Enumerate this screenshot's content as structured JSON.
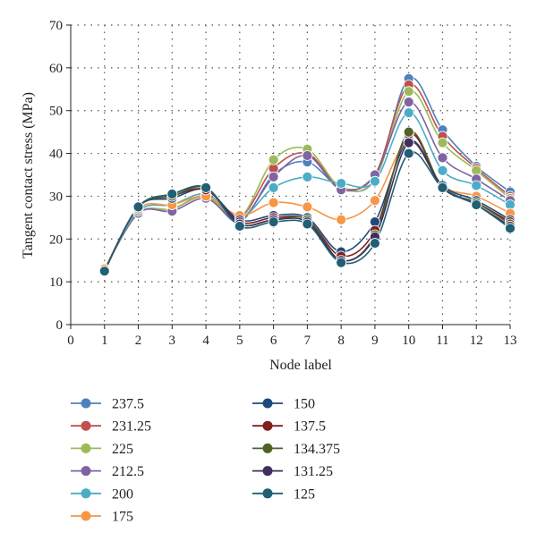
{
  "chart_data": {
    "type": "line",
    "title": "",
    "xlabel": "Node label",
    "ylabel": "Tangent contact stress (MPa)",
    "xlim": [
      0,
      13
    ],
    "ylim": [
      0,
      70
    ],
    "x_ticks": [
      "0",
      "1",
      "2",
      "3",
      "4",
      "5",
      "6",
      "7",
      "8",
      "9",
      "10",
      "11",
      "12",
      "13"
    ],
    "y_ticks": [
      "0",
      "10",
      "20",
      "30",
      "40",
      "50",
      "60",
      "70"
    ],
    "grid": "dotted",
    "legend_position": "bottom",
    "x": [
      1,
      2,
      3,
      4,
      5,
      6,
      7,
      8,
      9,
      10,
      11,
      12,
      13
    ],
    "series": [
      {
        "name": "237.5",
        "color": "#4f81bd",
        "values": [
          13,
          26,
          27,
          30,
          24,
          35,
          38,
          32,
          34,
          57.5,
          45.5,
          37,
          31
        ]
      },
      {
        "name": "231.25",
        "color": "#c0504d",
        "values": [
          13,
          26,
          27,
          30,
          25,
          36.5,
          40,
          32,
          35,
          56,
          44,
          36.5,
          30
        ]
      },
      {
        "name": "225",
        "color": "#9bbb59",
        "values": [
          13,
          26,
          27,
          30,
          25,
          38.5,
          41,
          32,
          34,
          54.5,
          42.5,
          36,
          29.5
        ]
      },
      {
        "name": "212.5",
        "color": "#8064a2",
        "values": [
          13,
          26,
          26.5,
          29.5,
          24.5,
          34.5,
          39.5,
          31.5,
          35,
          52,
          39,
          34,
          29
        ]
      },
      {
        "name": "200",
        "color": "#4bacc6",
        "values": [
          13,
          26.5,
          28,
          30.5,
          25,
          32,
          34.5,
          33,
          33.5,
          49.5,
          36,
          32.5,
          28
        ]
      },
      {
        "name": "175",
        "color": "#f79646",
        "values": [
          13,
          27,
          28,
          30,
          25.5,
          28.5,
          27.5,
          24.5,
          29,
          43,
          32.5,
          30,
          26
        ]
      },
      {
        "name": "150",
        "color": "#1f497d",
        "values": [
          12.5,
          27.5,
          29.5,
          31.5,
          24.5,
          25.5,
          25,
          17,
          24,
          43,
          32.5,
          29,
          24.5
        ]
      },
      {
        "name": "137.5",
        "color": "#7f1f1f",
        "values": [
          12.5,
          27.5,
          30,
          31.5,
          24,
          25,
          24.5,
          16,
          22,
          44.5,
          32,
          28.5,
          24
        ]
      },
      {
        "name": "134.375",
        "color": "#4f6228",
        "values": [
          12.5,
          27.5,
          30,
          32,
          23.5,
          24.5,
          24.5,
          15,
          21,
          45,
          32,
          28.5,
          23.5
        ]
      },
      {
        "name": "131.25",
        "color": "#3f2f5f",
        "values": [
          12.5,
          27.5,
          30.5,
          32,
          23.5,
          24.5,
          24,
          15,
          20.5,
          42.5,
          32,
          28,
          23
        ]
      },
      {
        "name": "125",
        "color": "#215f73",
        "values": [
          12.5,
          27.5,
          30.5,
          32,
          23,
          24,
          23.5,
          14.5,
          19,
          40,
          32,
          28,
          22.5
        ]
      }
    ]
  }
}
